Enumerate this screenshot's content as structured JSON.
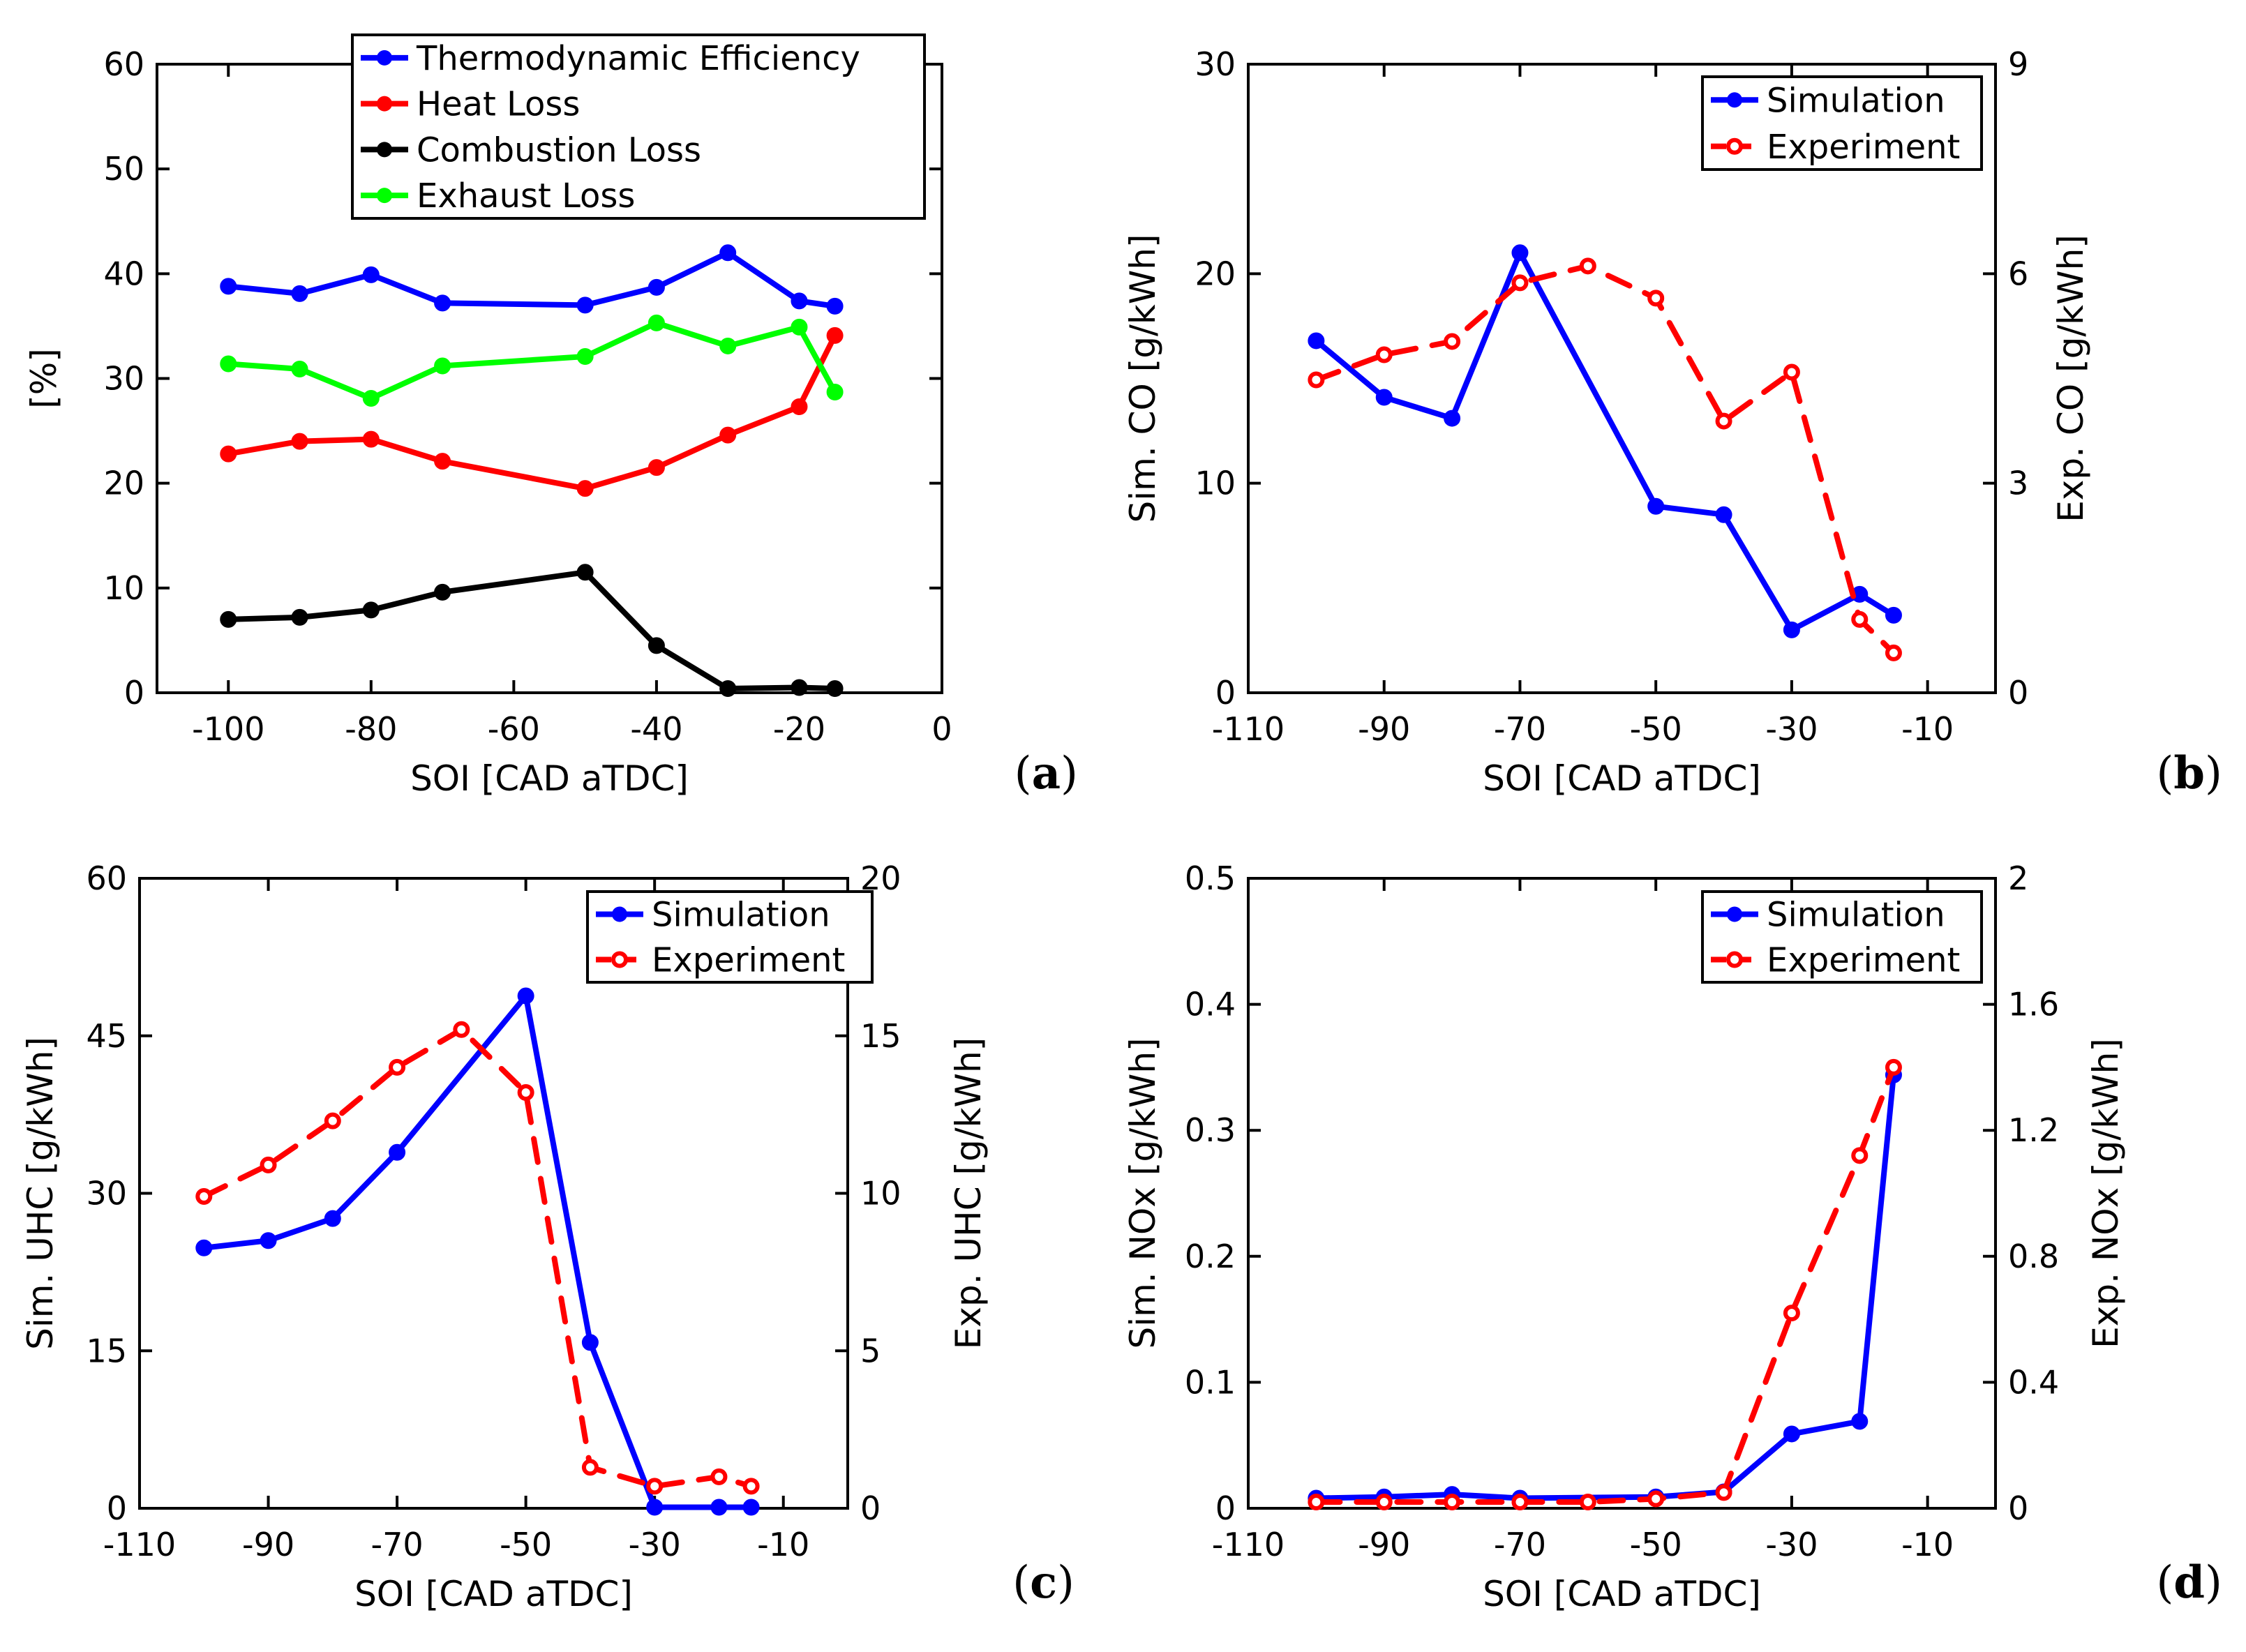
{
  "chart_data": [
    {
      "id": "a",
      "type": "line",
      "panel_label": "(a)",
      "xlabel": "SOI [CAD aTDC]",
      "ylabel": "[%]",
      "xlim": [
        -110,
        0
      ],
      "ylim": [
        0,
        60
      ],
      "x_ticks": [
        -100,
        -80,
        -60,
        -40,
        -20,
        0
      ],
      "x_tick_labels": [
        "-100",
        "-80",
        "-60",
        "-40",
        "-20",
        "0"
      ],
      "y_ticks": [
        0,
        10,
        20,
        30,
        40,
        50,
        60
      ],
      "y_tick_labels": [
        "0",
        "10",
        "20",
        "30",
        "40",
        "50",
        "60"
      ],
      "legend_position": "top-right",
      "series": [
        {
          "name": "Thermodynamic Efficiency",
          "color": "#0000ff",
          "dash": "solid",
          "x": [
            -100,
            -90,
            -80,
            -70,
            -50,
            -40,
            -30,
            -20,
            -15
          ],
          "y": [
            38.8,
            38.1,
            39.9,
            37.2,
            37.0,
            38.7,
            42.0,
            37.4,
            36.9
          ]
        },
        {
          "name": "Heat Loss",
          "color": "#ff0000",
          "dash": "solid",
          "x": [
            -100,
            -90,
            -80,
            -70,
            -50,
            -40,
            -30,
            -20,
            -15
          ],
          "y": [
            22.8,
            24.0,
            24.2,
            22.1,
            19.5,
            21.5,
            24.6,
            27.3,
            34.1
          ]
        },
        {
          "name": "Combustion Loss",
          "color": "#000000",
          "dash": "solid",
          "x": [
            -100,
            -90,
            -80,
            -70,
            -50,
            -40,
            -30,
            -20,
            -15
          ],
          "y": [
            7.0,
            7.2,
            7.9,
            9.6,
            11.5,
            4.5,
            0.4,
            0.5,
            0.4
          ]
        },
        {
          "name": "Exhaust Loss",
          "color": "#00ff00",
          "dash": "solid",
          "x": [
            -100,
            -90,
            -80,
            -70,
            -50,
            -40,
            -30,
            -20,
            -15
          ],
          "y": [
            31.4,
            30.9,
            28.1,
            31.2,
            32.1,
            35.3,
            33.1,
            34.9,
            28.7
          ]
        }
      ]
    },
    {
      "id": "b",
      "type": "line",
      "panel_label": "(b)",
      "xlabel": "SOI [CAD aTDC]",
      "ylabel": "Sim. CO [g/kWh]",
      "ylabel_right": "Exp. CO [g/kWh]",
      "xlim": [
        -110,
        0
      ],
      "ylim": [
        0,
        30
      ],
      "ylim_right": [
        0,
        9
      ],
      "x_ticks": [
        -110,
        -90,
        -70,
        -50,
        -30,
        -10
      ],
      "x_tick_labels": [
        "-110",
        "-90",
        "-70",
        "-50",
        "-30",
        "-10"
      ],
      "y_ticks": [
        0,
        10,
        20,
        30
      ],
      "y_tick_labels": [
        "0",
        "10",
        "20",
        "30"
      ],
      "y_ticks_right": [
        0,
        3,
        6,
        9
      ],
      "y_tick_labels_right": [
        "0",
        "3",
        "6",
        "9"
      ],
      "legend_position": "top-right",
      "series": [
        {
          "name": "Simulation",
          "axis": "left",
          "color": "#0000ff",
          "dash": "solid",
          "x": [
            -100,
            -90,
            -80,
            -70,
            -50,
            -40,
            -30,
            -20,
            -15
          ],
          "y": [
            16.8,
            14.1,
            13.1,
            21.0,
            8.9,
            8.5,
            3.0,
            4.7,
            3.7
          ]
        },
        {
          "name": "Experiment",
          "axis": "right",
          "color": "#ff0000",
          "dash": "dashed",
          "x": [
            -100,
            -90,
            -80,
            -70,
            -60,
            -50,
            -40,
            -30,
            -20,
            -15
          ],
          "y": [
            4.48,
            4.84,
            5.03,
            5.87,
            6.11,
            5.65,
            3.89,
            4.59,
            1.05,
            0.57
          ]
        }
      ]
    },
    {
      "id": "c",
      "type": "line",
      "panel_label": "(c)",
      "xlabel": "SOI [CAD aTDC]",
      "ylabel": "Sim. UHC [g/kWh]",
      "ylabel_right": "Exp. UHC [g/kWh]",
      "xlim": [
        -110,
        0
      ],
      "ylim": [
        0,
        60
      ],
      "ylim_right": [
        0,
        20
      ],
      "x_ticks": [
        -110,
        -90,
        -70,
        -50,
        -30,
        -10
      ],
      "x_tick_labels": [
        "-110",
        "-90",
        "-70",
        "-50",
        "-30",
        "-10"
      ],
      "y_ticks": [
        0,
        15,
        30,
        45,
        60
      ],
      "y_tick_labels": [
        "0",
        "15",
        "30",
        "45",
        "60"
      ],
      "y_ticks_right": [
        0,
        5,
        10,
        15,
        20
      ],
      "y_tick_labels_right": [
        "0",
        "5",
        "10",
        "15",
        "20"
      ],
      "legend_position": "top-right",
      "series": [
        {
          "name": "Simulation",
          "axis": "left",
          "color": "#0000ff",
          "dash": "solid",
          "x": [
            -100,
            -90,
            -80,
            -70,
            -50,
            -40,
            -30,
            -20,
            -15
          ],
          "y": [
            24.8,
            25.5,
            27.6,
            33.9,
            48.8,
            15.8,
            0.1,
            0.1,
            0.1
          ]
        },
        {
          "name": "Experiment",
          "axis": "right",
          "color": "#ff0000",
          "dash": "dashed",
          "x": [
            -100,
            -90,
            -80,
            -70,
            -60,
            -50,
            -40,
            -30,
            -20,
            -15
          ],
          "y": [
            9.9,
            10.9,
            12.3,
            14.0,
            15.2,
            13.2,
            1.3,
            0.7,
            1.0,
            0.7
          ]
        }
      ]
    },
    {
      "id": "d",
      "type": "line",
      "panel_label": "(d)",
      "xlabel": "SOI [CAD aTDC]",
      "ylabel": "Sim. NOx [g/kWh]",
      "ylabel_right": "Exp. NOx [g/kWh]",
      "xlim": [
        -110,
        0
      ],
      "ylim": [
        0,
        0.5
      ],
      "ylim_right": [
        0,
        2
      ],
      "x_ticks": [
        -110,
        -90,
        -70,
        -50,
        -30,
        -10
      ],
      "x_tick_labels": [
        "-110",
        "-90",
        "-70",
        "-50",
        "-30",
        "-10"
      ],
      "y_ticks": [
        0,
        0.1,
        0.2,
        0.3,
        0.4,
        0.5
      ],
      "y_tick_labels": [
        "0",
        "0.1",
        "0.2",
        "0.3",
        "0.4",
        "0.5"
      ],
      "y_ticks_right": [
        0,
        0.4,
        0.8,
        1.2,
        1.6,
        2.0
      ],
      "y_tick_labels_right": [
        "0",
        "0.4",
        "0.8",
        "1.2",
        "1.6",
        "2"
      ],
      "legend_position": "top-right",
      "series": [
        {
          "name": "Simulation",
          "axis": "left",
          "color": "#0000ff",
          "dash": "solid",
          "x": [
            -100,
            -90,
            -80,
            -70,
            -50,
            -40,
            -30,
            -20,
            -15
          ],
          "y": [
            0.008,
            0.009,
            0.011,
            0.008,
            0.009,
            0.013,
            0.059,
            0.069,
            0.344
          ]
        },
        {
          "name": "Experiment",
          "axis": "right",
          "color": "#ff0000",
          "dash": "dashed",
          "x": [
            -100,
            -90,
            -80,
            -70,
            -60,
            -50,
            -40,
            -30,
            -20,
            -15
          ],
          "y": [
            0.02,
            0.02,
            0.02,
            0.02,
            0.02,
            0.03,
            0.05,
            0.62,
            1.12,
            1.4
          ]
        }
      ]
    }
  ]
}
